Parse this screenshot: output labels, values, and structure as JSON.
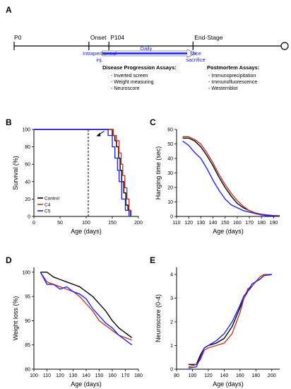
{
  "panel_a": {
    "letter": "A",
    "markers": [
      {
        "label": "P0",
        "pos": 0
      },
      {
        "label": "Onset",
        "pos": 0.28
      },
      {
        "label": "P104",
        "pos": 0.355
      },
      {
        "label": "End-Stage",
        "pos": 0.67
      }
    ],
    "treatment_start": "Intraperitoneal inj.",
    "treatment_start_line1": "Intraperitoneal",
    "treatment_start_line2": "inj.",
    "treatment_period": "Daily",
    "treatment_end": "Mice sacrifice",
    "treatment_end_line1": "Mice",
    "treatment_end_line2": "sacrifice",
    "disease_assays": {
      "title": "Disease Progression Assays:",
      "items": [
        "- Inverted screen",
        "- Weight measuring",
        "- Neuroscore"
      ]
    },
    "postmortem_assays": {
      "title": "Postmortem Assays:",
      "items": [
        "- Immunoprecipitation",
        "- Immunofluorescence",
        "- Westernblot"
      ]
    },
    "colors": {
      "treatment": "#1a1aff"
    }
  },
  "legend": [
    {
      "name": "Control",
      "color": "#000000"
    },
    {
      "name": "C4",
      "color": "#c0392b"
    },
    {
      "name": "C5",
      "color": "#2222ff"
    }
  ],
  "chart_data": [
    {
      "panel": "B",
      "type": "line",
      "step": true,
      "xlabel": "Age (days)",
      "ylabel": "Survival (%)",
      "xlim": [
        0,
        200
      ],
      "ylim": [
        0,
        100
      ],
      "xticks": [
        0,
        50,
        100,
        150,
        200
      ],
      "yticks": [
        0,
        20,
        40,
        60,
        80,
        100
      ],
      "vline_x": 104,
      "series": [
        {
          "name": "Control",
          "color": "#000000",
          "x": [
            0,
            140,
            150,
            155,
            158,
            162,
            165,
            168,
            172,
            176,
            180,
            185
          ],
          "y": [
            100,
            100,
            93,
            87,
            80,
            67,
            53,
            40,
            27,
            13,
            7,
            0
          ]
        },
        {
          "name": "C4",
          "color": "#c0392b",
          "x": [
            0,
            145,
            152,
            158,
            163,
            167,
            170,
            174,
            178,
            182,
            186
          ],
          "y": [
            100,
            100,
            93,
            87,
            73,
            60,
            47,
            33,
            20,
            7,
            0
          ]
        },
        {
          "name": "C5",
          "color": "#2222ff",
          "x": [
            0,
            135,
            142,
            150,
            155,
            160,
            163,
            168,
            175,
            182
          ],
          "y": [
            100,
            100,
            93,
            80,
            67,
            53,
            40,
            20,
            7,
            0
          ]
        }
      ]
    },
    {
      "panel": "C",
      "type": "line",
      "xlabel": "Age (days)",
      "ylabel": "Hanging time (sec)",
      "xlim": [
        110,
        195
      ],
      "ylim": [
        0,
        60
      ],
      "xticks": [
        110,
        120,
        130,
        140,
        150,
        160,
        170,
        180,
        190
      ],
      "yticks": [
        0,
        10,
        20,
        30,
        40,
        50,
        60
      ],
      "series": [
        {
          "name": "Control",
          "color": "#000000",
          "x": [
            115,
            120,
            125,
            130,
            135,
            140,
            145,
            150,
            155,
            160,
            165,
            170,
            175,
            180,
            185,
            190,
            195
          ],
          "y": [
            54,
            54,
            52,
            48,
            42,
            35,
            27,
            20,
            14,
            9,
            6,
            4,
            2,
            1.5,
            1,
            0.5,
            0.5
          ]
        },
        {
          "name": "C4",
          "color": "#c0392b",
          "x": [
            115,
            120,
            125,
            130,
            135,
            140,
            145,
            150,
            155,
            160,
            165,
            170,
            175,
            180,
            185,
            190,
            195
          ],
          "y": [
            55,
            55,
            53,
            50,
            44,
            37,
            29,
            22,
            16,
            11,
            7,
            4,
            2.5,
            1.5,
            1,
            0.5,
            0.5
          ]
        },
        {
          "name": "C5",
          "color": "#2222ff",
          "x": [
            115,
            120,
            125,
            130,
            135,
            140,
            145,
            150,
            155,
            160,
            165,
            170,
            175,
            180,
            185,
            190,
            195
          ],
          "y": [
            52,
            49,
            44,
            40,
            33,
            25,
            18,
            12,
            8,
            6,
            4,
            3,
            2,
            1,
            0.5,
            0.5,
            0
          ]
        }
      ]
    },
    {
      "panel": "D",
      "type": "line",
      "xlabel": "Age (days)",
      "ylabel": "Weight loss (%)",
      "xlim": [
        100,
        180
      ],
      "ylim": [
        80,
        101
      ],
      "xticks": [
        100,
        110,
        120,
        130,
        140,
        150,
        160,
        170,
        180
      ],
      "yticks": [
        80,
        85,
        90,
        95,
        100
      ],
      "series": [
        {
          "name": "Control",
          "color": "#000000",
          "x": [
            105,
            110,
            115,
            120,
            125,
            130,
            135,
            140,
            145,
            150,
            155,
            160,
            165,
            170,
            175
          ],
          "y": [
            100,
            100,
            99,
            98.5,
            98,
            97.5,
            97,
            96,
            95,
            93.5,
            92,
            90,
            88.5,
            87.5,
            86.5
          ]
        },
        {
          "name": "C4",
          "color": "#c0392b",
          "x": [
            105,
            110,
            115,
            120,
            125,
            130,
            135,
            140,
            145,
            150,
            155,
            160,
            165,
            170,
            175
          ],
          "y": [
            100,
            98,
            97.5,
            97,
            96.5,
            96,
            95,
            93.5,
            92,
            90,
            89,
            88,
            87,
            86.5,
            86
          ]
        },
        {
          "name": "C5",
          "color": "#2222ff",
          "x": [
            105,
            110,
            115,
            120,
            125,
            130,
            135,
            140,
            145,
            150,
            155,
            160,
            165,
            170,
            175
          ],
          "y": [
            100,
            97.5,
            97.5,
            96.5,
            97,
            96,
            95.5,
            94.5,
            92.5,
            91,
            89.5,
            88.5,
            87,
            86,
            85
          ]
        }
      ]
    },
    {
      "panel": "E",
      "type": "line",
      "xlabel": "Age (days)",
      "ylabel": "Neuroscore (0-4)",
      "xlim": [
        80,
        210
      ],
      "ylim": [
        0,
        4.3
      ],
      "xticks": [
        80,
        100,
        120,
        140,
        160,
        180,
        200
      ],
      "yticks": [
        0,
        1,
        2,
        3,
        4
      ],
      "series": [
        {
          "name": "Control",
          "color": "#000000",
          "x": [
            95,
            105,
            110,
            115,
            120,
            130,
            140,
            150,
            160,
            165,
            170,
            175,
            180,
            185,
            190,
            200
          ],
          "y": [
            0.2,
            0.2,
            0.6,
            0.9,
            1.0,
            1.1,
            1.3,
            1.8,
            2.6,
            3.0,
            3.3,
            3.5,
            3.7,
            3.8,
            3.95,
            4.0
          ]
        },
        {
          "name": "C4",
          "color": "#c0392b",
          "x": [
            95,
            105,
            110,
            115,
            120,
            130,
            140,
            150,
            160,
            165,
            170,
            175,
            180,
            185,
            190,
            200
          ],
          "y": [
            0.1,
            0.2,
            0.4,
            0.8,
            0.9,
            1.0,
            1.1,
            1.5,
            2.4,
            3.0,
            3.4,
            3.5,
            3.7,
            3.9,
            4.0,
            4.0
          ]
        },
        {
          "name": "C5",
          "color": "#2222ff",
          "x": [
            95,
            105,
            110,
            115,
            120,
            130,
            140,
            150,
            160,
            165,
            170,
            175,
            180,
            185,
            190,
            200
          ],
          "y": [
            0.05,
            0.1,
            0.5,
            0.9,
            1.0,
            1.2,
            1.5,
            2.0,
            2.7,
            3.1,
            3.3,
            3.6,
            3.7,
            3.8,
            3.95,
            4.0
          ]
        }
      ]
    }
  ]
}
